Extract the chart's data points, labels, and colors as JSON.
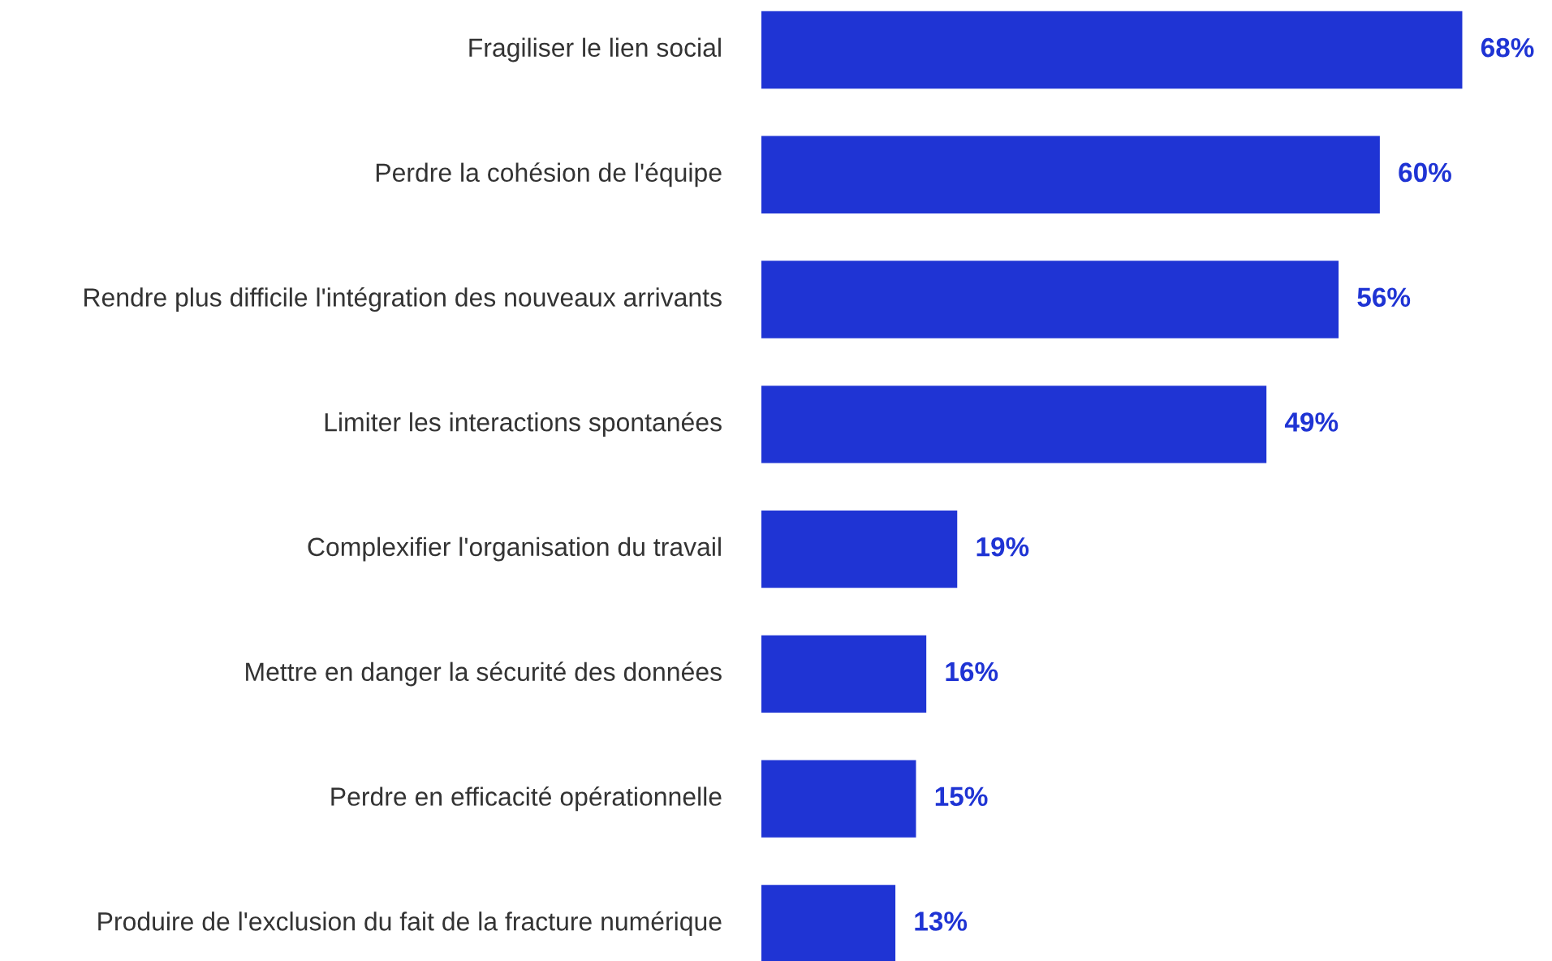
{
  "chart_data": {
    "type": "bar",
    "orientation": "horizontal",
    "categories": [
      "Fragiliser le lien social",
      "Perdre la cohésion de l'équipe",
      "Rendre plus difficile l'intégration des nouveaux arrivants",
      "Limiter les interactions spontanées",
      "Complexifier l'organisation du travail",
      "Mettre en danger la sécurité des données",
      "Perdre en efficacité opérationnelle",
      "Produire de l'exclusion du fait de la fracture numérique"
    ],
    "values": [
      68,
      60,
      56,
      49,
      19,
      16,
      15,
      13
    ],
    "value_labels": [
      "68%",
      "60%",
      "56%",
      "49%",
      "19%",
      "16%",
      "15%",
      "13%"
    ],
    "color": "#1f34d4"
  }
}
